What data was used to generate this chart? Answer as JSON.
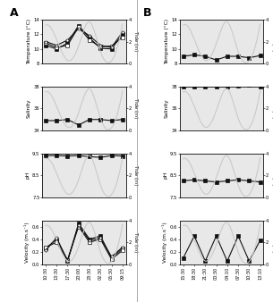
{
  "panel_A": {
    "label": "A",
    "x_labels": [
      "10:30",
      "13:30",
      "17:30",
      "20:00",
      "23:30",
      "02:30",
      "05:30",
      "09:15"
    ],
    "tide": [
      3.5,
      2.2,
      0.3,
      1.6,
      3.8,
      1.1,
      0.25,
      3.6
    ],
    "temperature": {
      "n_lines": 3,
      "lines": [
        [
          10.5,
          10.0,
          10.8,
          13.2,
          11.5,
          10.1,
          10.0,
          12.0
        ],
        [
          10.8,
          10.2,
          10.5,
          13.0,
          11.2,
          10.3,
          10.4,
          11.6
        ],
        [
          11.0,
          10.5,
          11.2,
          12.8,
          11.8,
          10.5,
          10.2,
          12.3
        ]
      ],
      "ylim": [
        8,
        14
      ],
      "yticks": [
        8,
        10,
        12,
        14
      ],
      "ylabel": "Temperature (°C)"
    },
    "salinity": {
      "n_lines": 1,
      "lines": [
        [
          34.9,
          34.9,
          35.0,
          34.5,
          35.0,
          35.0,
          34.9,
          35.0
        ]
      ],
      "ylim": [
        34,
        38
      ],
      "yticks": [
        34,
        36,
        38
      ],
      "ylabel": "Salinity"
    },
    "ph": {
      "n_lines": 1,
      "lines": [
        [
          9.4,
          9.4,
          9.38,
          9.4,
          9.35,
          9.32,
          9.4,
          9.38
        ]
      ],
      "ylim": [
        7.5,
        9.5
      ],
      "yticks": [
        7.5,
        8.5,
        9.5
      ],
      "ylabel": "pH"
    },
    "velocity": {
      "n_lines": 3,
      "lines": [
        [
          0.25,
          0.4,
          0.05,
          0.65,
          0.4,
          0.45,
          0.1,
          0.25
        ],
        [
          0.27,
          0.35,
          0.07,
          0.6,
          0.35,
          0.4,
          0.08,
          0.22
        ],
        [
          0.22,
          0.42,
          0.06,
          0.62,
          0.38,
          0.42,
          0.12,
          0.27
        ]
      ],
      "ylim": [
        0,
        0.7
      ],
      "yticks": [
        0,
        0.2,
        0.4,
        0.6
      ],
      "ylabel": "Velocity (m.s⁻¹)"
    }
  },
  "panel_B": {
    "label": "B",
    "x_labels": [
      "15:30",
      "18:30",
      "21:30",
      "00:30",
      "04:10",
      "07:30",
      "10:30",
      "13:10"
    ],
    "tide": [
      3.5,
      2.2,
      0.3,
      1.8,
      3.8,
      1.1,
      0.25,
      3.6
    ],
    "temperature": {
      "n_lines": 1,
      "lines": [
        [
          9.0,
          9.2,
          9.0,
          8.5,
          9.0,
          9.0,
          8.8,
          9.1
        ]
      ],
      "ylim": [
        8,
        14
      ],
      "yticks": [
        8,
        10,
        12,
        14
      ],
      "ylabel": "Temperature (°C)"
    },
    "salinity": {
      "n_lines": 1,
      "lines": [
        [
          38.0,
          38.0,
          38.0,
          38.0,
          38.0,
          38.1,
          38.15,
          38.0
        ]
      ],
      "ylim": [
        34,
        38
      ],
      "yticks": [
        34,
        36,
        38
      ],
      "ylabel": "Salinity"
    },
    "ph": {
      "n_lines": 1,
      "lines": [
        [
          8.25,
          8.3,
          8.25,
          8.2,
          8.25,
          8.3,
          8.25,
          8.2
        ]
      ],
      "ylim": [
        7.5,
        9.5
      ],
      "yticks": [
        7.5,
        8.5,
        9.5
      ],
      "ylabel": "pH"
    },
    "velocity": {
      "n_lines": 1,
      "lines": [
        [
          0.1,
          0.45,
          0.05,
          0.45,
          0.05,
          0.45,
          0.05,
          0.38
        ]
      ],
      "ylim": [
        0,
        0.7
      ],
      "yticks": [
        0,
        0.2,
        0.4,
        0.6
      ],
      "ylabel": "Velocity (m.s⁻¹)"
    }
  },
  "tide_color": "#c8c8c8",
  "data_color": "#111111",
  "tide_ylim": [
    0,
    4
  ],
  "tide_yticks": [
    0,
    2,
    4
  ],
  "bg_color": "#e8e8e8",
  "row_order": [
    "temperature",
    "salinity",
    "ph",
    "velocity"
  ]
}
